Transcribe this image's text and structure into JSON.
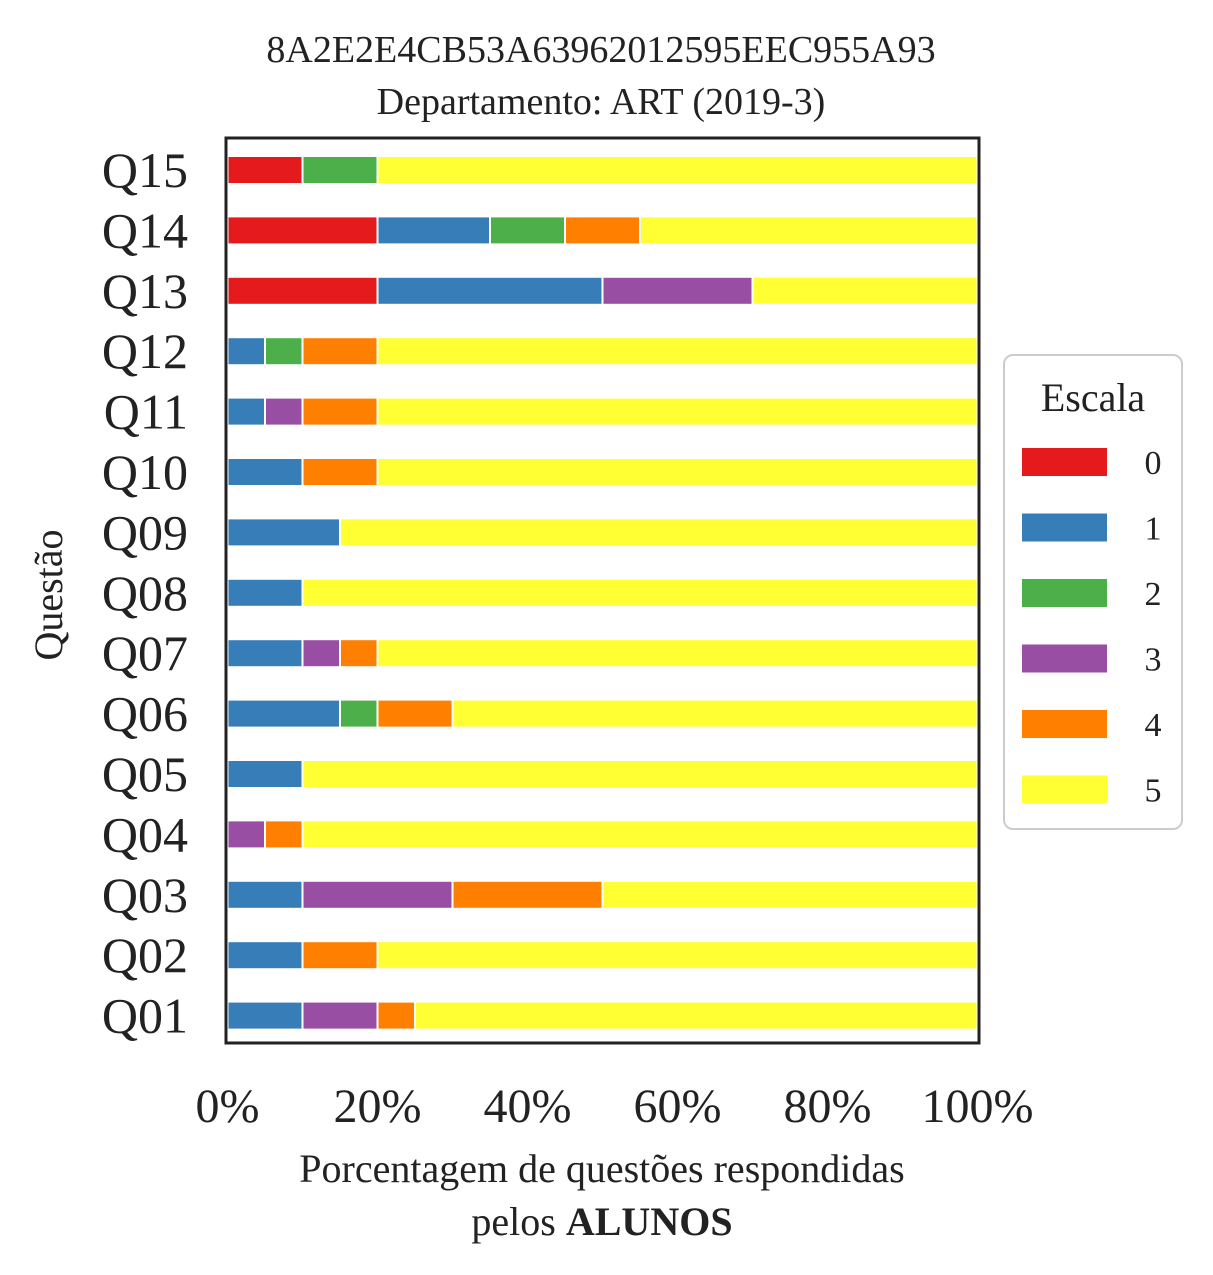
{
  "chart_data": {
    "type": "bar",
    "orientation": "horizontal",
    "stacked": true,
    "title_line1": "8A2E2E4CB53A63962012595EEC955A93",
    "title_line2": "Departamento: ART (2019-3)",
    "ylabel": "Questão",
    "xlabel_line1": "Porcentagem de questões respondidas",
    "xlabel_line2_prefix": "pelos ",
    "xlabel_line2_bold": "ALUNOS",
    "xlim": [
      0,
      100
    ],
    "xticks": [
      "0%",
      "20%",
      "40%",
      "60%",
      "80%",
      "100%"
    ],
    "grid": false,
    "legend": {
      "title": "Escala",
      "placement": "center-right outside"
    },
    "categories": [
      "Q01",
      "Q02",
      "Q03",
      "Q04",
      "Q05",
      "Q06",
      "Q07",
      "Q08",
      "Q09",
      "Q10",
      "Q11",
      "Q12",
      "Q13",
      "Q14",
      "Q15"
    ],
    "series": [
      {
        "name": "0",
        "color": "#e41a1c",
        "values": [
          0,
          0,
          0,
          0,
          0,
          0,
          0,
          0,
          0,
          0,
          0,
          0,
          20,
          20,
          10
        ]
      },
      {
        "name": "1",
        "color": "#377eb8",
        "values": [
          10,
          10,
          10,
          0,
          10,
          15,
          10,
          10,
          15,
          10,
          5,
          5,
          30,
          15,
          0
        ]
      },
      {
        "name": "2",
        "color": "#4daf4a",
        "values": [
          0,
          0,
          0,
          0,
          0,
          5,
          0,
          0,
          0,
          0,
          0,
          5,
          0,
          10,
          10
        ]
      },
      {
        "name": "3",
        "color": "#984ea3",
        "values": [
          10,
          0,
          20,
          5,
          0,
          0,
          5,
          0,
          0,
          0,
          5,
          0,
          20,
          0,
          0
        ]
      },
      {
        "name": "4",
        "color": "#ff7f00",
        "values": [
          5,
          10,
          20,
          5,
          0,
          10,
          5,
          0,
          0,
          10,
          10,
          10,
          0,
          10,
          0
        ]
      },
      {
        "name": "5",
        "color": "#ffff33",
        "values": [
          75,
          80,
          50,
          90,
          90,
          70,
          80,
          90,
          85,
          80,
          80,
          80,
          30,
          45,
          80
        ]
      }
    ]
  }
}
